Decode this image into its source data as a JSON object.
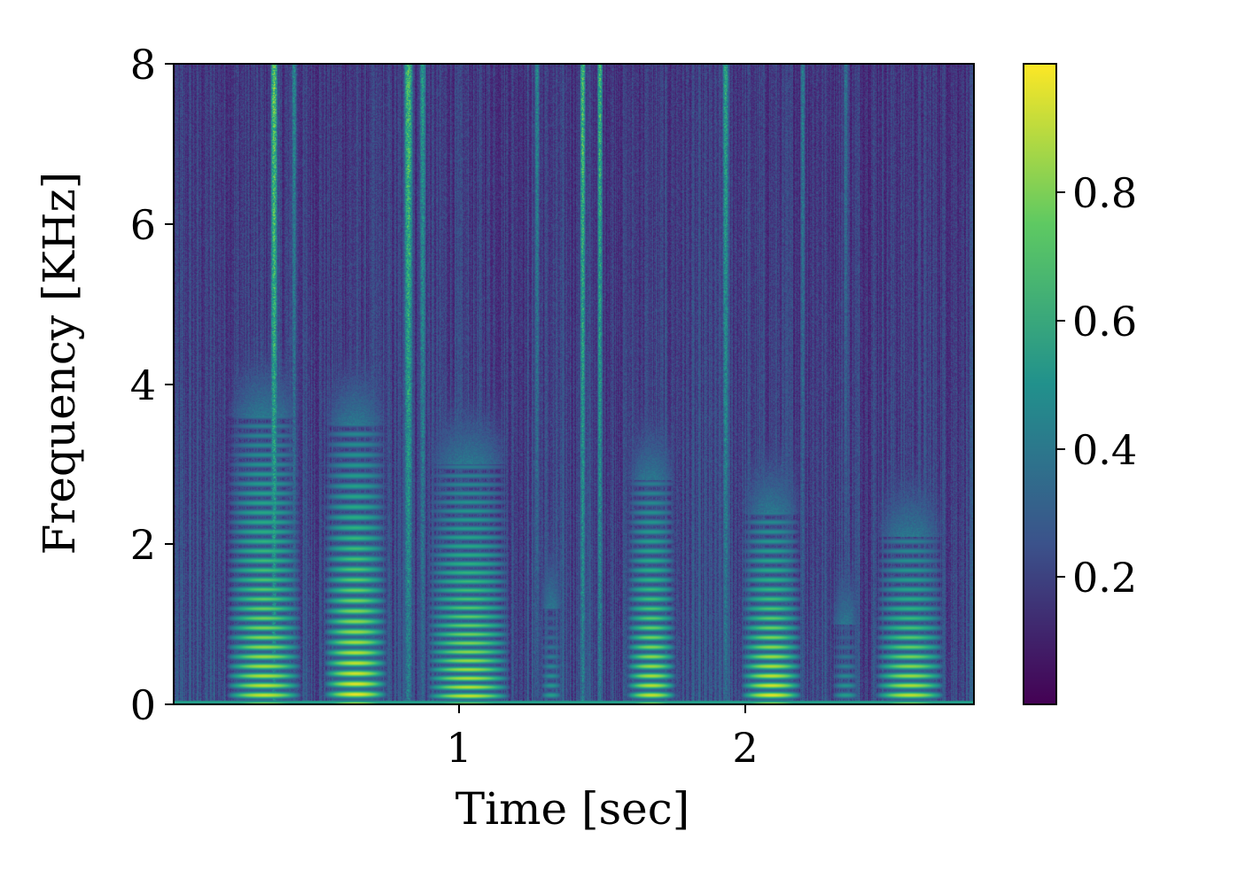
{
  "chart_data": {
    "type": "heatmap",
    "title": "",
    "xlabel": "Time [sec]",
    "ylabel": "Frequency [KHz]",
    "xlim": [
      0,
      2.8
    ],
    "ylim": [
      0,
      8
    ],
    "x_ticks": [
      1,
      2
    ],
    "x_tick_labels": [
      "1",
      "2"
    ],
    "y_ticks": [
      0,
      2,
      4,
      6,
      8
    ],
    "y_tick_labels": [
      "0",
      "2",
      "4",
      "6",
      "8"
    ],
    "colormap": "viridis",
    "colorbar": {
      "range": [
        0,
        1
      ],
      "ticks": [
        0.2,
        0.4,
        0.6,
        0.8
      ],
      "tick_labels": [
        "0.2",
        "0.4",
        "0.6",
        "0.8"
      ],
      "placement": "right"
    },
    "grid": false,
    "colors": [
      "#440154",
      "#3b528b",
      "#21918c",
      "#5ec962",
      "#fde725"
    ],
    "voiced_segments": [
      {
        "start": 0.18,
        "end": 0.45,
        "f0": 0.12,
        "top": 3.6,
        "peak": 0.95
      },
      {
        "start": 0.52,
        "end": 0.75,
        "f0": 0.13,
        "top": 3.5,
        "peak": 1.0
      },
      {
        "start": 0.88,
        "end": 1.18,
        "f0": 0.11,
        "top": 3.0,
        "peak": 0.95
      },
      {
        "start": 1.28,
        "end": 1.36,
        "f0": 0.12,
        "top": 1.2,
        "peak": 0.6
      },
      {
        "start": 1.58,
        "end": 1.76,
        "f0": 0.12,
        "top": 2.8,
        "peak": 0.95
      },
      {
        "start": 1.98,
        "end": 2.2,
        "f0": 0.12,
        "top": 2.4,
        "peak": 1.0
      },
      {
        "start": 2.3,
        "end": 2.4,
        "f0": 0.12,
        "top": 1.0,
        "peak": 0.6
      },
      {
        "start": 2.45,
        "end": 2.7,
        "f0": 0.12,
        "top": 2.1,
        "peak": 0.95
      }
    ],
    "broadband_events": [
      {
        "t": 0.35,
        "width": 0.015,
        "strength": 0.95
      },
      {
        "t": 0.42,
        "width": 0.012,
        "strength": 0.6
      },
      {
        "t": 0.82,
        "width": 0.02,
        "strength": 0.9
      },
      {
        "t": 0.87,
        "width": 0.015,
        "strength": 0.7
      },
      {
        "t": 1.27,
        "width": 0.012,
        "strength": 0.6
      },
      {
        "t": 1.43,
        "width": 0.012,
        "strength": 0.9
      },
      {
        "t": 1.49,
        "width": 0.012,
        "strength": 0.85
      },
      {
        "t": 1.93,
        "width": 0.015,
        "strength": 0.75
      },
      {
        "t": 2.2,
        "width": 0.012,
        "strength": 0.55
      },
      {
        "t": 2.35,
        "width": 0.012,
        "strength": 0.5
      }
    ]
  }
}
